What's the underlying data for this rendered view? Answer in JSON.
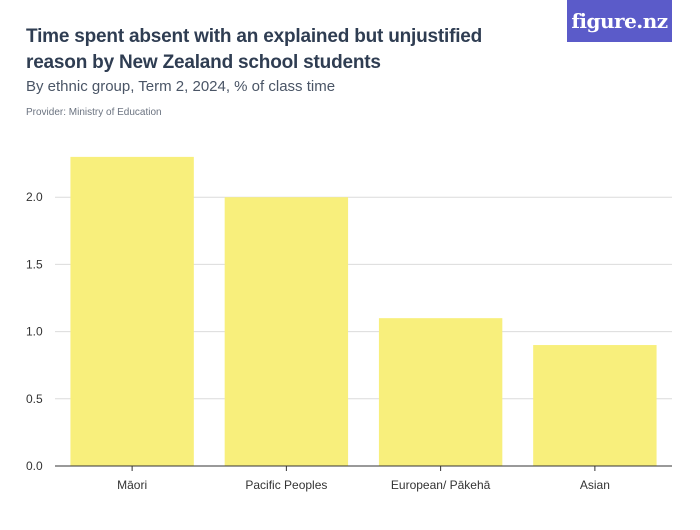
{
  "header": {
    "title": "Time spent absent with an explained but unjustified reason by New Zealand school students",
    "subtitle": "By ethnic group, Term 2, 2024, % of class time",
    "provider": "Provider: Ministry of Education",
    "logo_text": "figure.nz"
  },
  "colors": {
    "bar": "#f8ef7c",
    "grid": "#dcdcdc",
    "axis": "#333333",
    "logo_bg": "#5b5bc9"
  },
  "chart_data": {
    "type": "bar",
    "categories": [
      "Māori",
      "Pacific Peoples",
      "European/ Pākehā",
      "Asian"
    ],
    "values": [
      2.3,
      2.0,
      1.1,
      0.9
    ],
    "title": "",
    "xlabel": "",
    "ylabel": "",
    "ylim": [
      0,
      2.5
    ],
    "yticks": [
      "0.0",
      "0.5",
      "1.0",
      "1.5",
      "2.0"
    ],
    "ytick_values": [
      0,
      0.5,
      1.0,
      1.5,
      2.0
    ],
    "grid": true,
    "legend": "none"
  }
}
